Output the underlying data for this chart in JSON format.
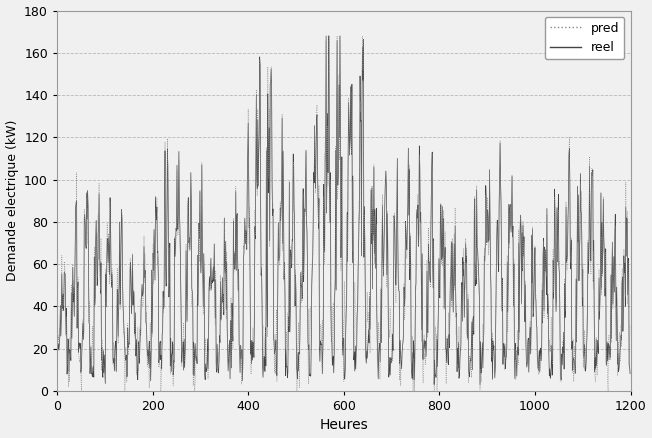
{
  "xlabel": "Heures",
  "ylabel": "Demande electrique (kW)",
  "xlim": [
    0,
    1200
  ],
  "ylim": [
    0,
    180
  ],
  "xticks": [
    0,
    200,
    400,
    600,
    800,
    1000,
    1200
  ],
  "yticks": [
    0,
    20,
    40,
    60,
    80,
    100,
    120,
    140,
    160,
    180
  ],
  "grid_color": "#aaaaaa",
  "bg_color": "#f0f0f0",
  "plot_bg_color": "#f0f0f0",
  "line_color_pred": "#888888",
  "line_color_reel": "#444444",
  "legend_labels": [
    "pred",
    "reel"
  ],
  "n_points": 1200,
  "seed": 7
}
